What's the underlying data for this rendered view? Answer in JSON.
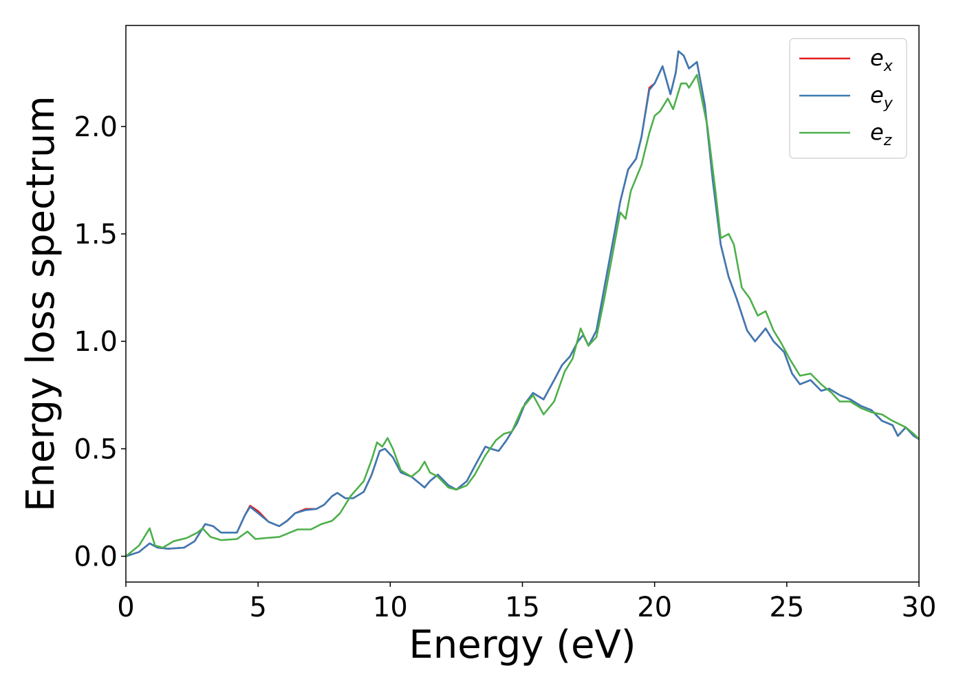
{
  "chart_data": {
    "type": "line",
    "title": "",
    "xlabel": "Energy (eV)",
    "ylabel": "Energy loss spectrum",
    "xlim": [
      0,
      30
    ],
    "ylim": [
      -0.12,
      2.47
    ],
    "xticks": [
      0,
      5,
      10,
      15,
      20,
      25,
      30
    ],
    "xtick_labels": [
      "0",
      "5",
      "10",
      "15",
      "20",
      "25",
      "30"
    ],
    "yticks": [
      0.0,
      0.5,
      1.0,
      1.5,
      2.0
    ],
    "ytick_labels": [
      "0.0",
      "0.5",
      "1.0",
      "1.5",
      "2.0"
    ],
    "grid": false,
    "legend_position": "top-right",
    "series": [
      {
        "name": "e_x",
        "legend_base": "e",
        "legend_sub": "x",
        "color": "#e41a1c",
        "points": [
          [
            0,
            0
          ],
          [
            0.5,
            0.02
          ],
          [
            0.9,
            0.06
          ],
          [
            1.2,
            0.04
          ],
          [
            1.6,
            0.035
          ],
          [
            2.2,
            0.04
          ],
          [
            2.6,
            0.07
          ],
          [
            3.0,
            0.15
          ],
          [
            3.3,
            0.14
          ],
          [
            3.6,
            0.11
          ],
          [
            4.2,
            0.11
          ],
          [
            4.5,
            0.19
          ],
          [
            4.7,
            0.235
          ],
          [
            5.0,
            0.21
          ],
          [
            5.4,
            0.16
          ],
          [
            5.8,
            0.14
          ],
          [
            6.1,
            0.165
          ],
          [
            6.4,
            0.2
          ],
          [
            6.8,
            0.22
          ],
          [
            7.2,
            0.22
          ],
          [
            7.5,
            0.24
          ],
          [
            7.8,
            0.28
          ],
          [
            8.0,
            0.295
          ],
          [
            8.3,
            0.27
          ],
          [
            8.6,
            0.27
          ],
          [
            9.0,
            0.3
          ],
          [
            9.3,
            0.38
          ],
          [
            9.6,
            0.49
          ],
          [
            9.8,
            0.5
          ],
          [
            10.1,
            0.46
          ],
          [
            10.4,
            0.39
          ],
          [
            10.8,
            0.37
          ],
          [
            11.1,
            0.34
          ],
          [
            11.3,
            0.32
          ],
          [
            11.5,
            0.35
          ],
          [
            11.8,
            0.38
          ],
          [
            12.2,
            0.33
          ],
          [
            12.5,
            0.31
          ],
          [
            12.9,
            0.35
          ],
          [
            13.2,
            0.42
          ],
          [
            13.6,
            0.51
          ],
          [
            13.8,
            0.5
          ],
          [
            14.1,
            0.49
          ],
          [
            14.4,
            0.54
          ],
          [
            14.8,
            0.62
          ],
          [
            15.1,
            0.71
          ],
          [
            15.4,
            0.76
          ],
          [
            15.8,
            0.73
          ],
          [
            16.2,
            0.82
          ],
          [
            16.5,
            0.89
          ],
          [
            16.8,
            0.93
          ],
          [
            17.1,
            1.0
          ],
          [
            17.3,
            1.03
          ],
          [
            17.5,
            0.98
          ],
          [
            17.8,
            1.05
          ],
          [
            18.1,
            1.25
          ],
          [
            18.4,
            1.45
          ],
          [
            18.7,
            1.65
          ],
          [
            19.0,
            1.8
          ],
          [
            19.3,
            1.85
          ],
          [
            19.5,
            1.95
          ],
          [
            19.8,
            2.18
          ],
          [
            20.0,
            2.2
          ],
          [
            20.3,
            2.28
          ],
          [
            20.6,
            2.15
          ],
          [
            20.8,
            2.25
          ],
          [
            20.9,
            2.35
          ],
          [
            21.1,
            2.33
          ],
          [
            21.3,
            2.27
          ],
          [
            21.6,
            2.3
          ],
          [
            21.9,
            2.1
          ],
          [
            22.2,
            1.75
          ],
          [
            22.5,
            1.45
          ],
          [
            22.8,
            1.3
          ],
          [
            23.1,
            1.2
          ],
          [
            23.5,
            1.05
          ],
          [
            23.8,
            1.0
          ],
          [
            24.2,
            1.06
          ],
          [
            24.5,
            1.0
          ],
          [
            24.9,
            0.95
          ],
          [
            25.2,
            0.85
          ],
          [
            25.5,
            0.8
          ],
          [
            25.9,
            0.82
          ],
          [
            26.3,
            0.77
          ],
          [
            26.6,
            0.78
          ],
          [
            27.0,
            0.75
          ],
          [
            27.4,
            0.73
          ],
          [
            27.8,
            0.7
          ],
          [
            28.2,
            0.68
          ],
          [
            28.6,
            0.63
          ],
          [
            29.0,
            0.61
          ],
          [
            29.2,
            0.56
          ],
          [
            29.5,
            0.6
          ],
          [
            29.8,
            0.56
          ],
          [
            30.0,
            0.545
          ]
        ]
      },
      {
        "name": "e_y",
        "legend_base": "e",
        "legend_sub": "y",
        "color": "#3a7bb5",
        "points": [
          [
            0,
            0
          ],
          [
            0.5,
            0.02
          ],
          [
            0.9,
            0.06
          ],
          [
            1.2,
            0.04
          ],
          [
            1.6,
            0.035
          ],
          [
            2.2,
            0.04
          ],
          [
            2.6,
            0.07
          ],
          [
            3.0,
            0.15
          ],
          [
            3.3,
            0.14
          ],
          [
            3.6,
            0.11
          ],
          [
            4.2,
            0.11
          ],
          [
            4.5,
            0.19
          ],
          [
            4.7,
            0.23
          ],
          [
            5.0,
            0.2
          ],
          [
            5.4,
            0.16
          ],
          [
            5.8,
            0.14
          ],
          [
            6.1,
            0.165
          ],
          [
            6.4,
            0.2
          ],
          [
            6.8,
            0.215
          ],
          [
            7.2,
            0.22
          ],
          [
            7.5,
            0.24
          ],
          [
            7.8,
            0.28
          ],
          [
            8.0,
            0.295
          ],
          [
            8.3,
            0.27
          ],
          [
            8.6,
            0.27
          ],
          [
            9.0,
            0.3
          ],
          [
            9.3,
            0.38
          ],
          [
            9.6,
            0.49
          ],
          [
            9.8,
            0.5
          ],
          [
            10.1,
            0.46
          ],
          [
            10.4,
            0.39
          ],
          [
            10.8,
            0.37
          ],
          [
            11.1,
            0.34
          ],
          [
            11.3,
            0.32
          ],
          [
            11.5,
            0.35
          ],
          [
            11.8,
            0.38
          ],
          [
            12.2,
            0.33
          ],
          [
            12.5,
            0.31
          ],
          [
            12.9,
            0.35
          ],
          [
            13.2,
            0.42
          ],
          [
            13.6,
            0.51
          ],
          [
            13.8,
            0.5
          ],
          [
            14.1,
            0.49
          ],
          [
            14.4,
            0.54
          ],
          [
            14.8,
            0.62
          ],
          [
            15.1,
            0.71
          ],
          [
            15.4,
            0.76
          ],
          [
            15.8,
            0.73
          ],
          [
            16.2,
            0.82
          ],
          [
            16.5,
            0.89
          ],
          [
            16.8,
            0.93
          ],
          [
            17.1,
            1.0
          ],
          [
            17.3,
            1.03
          ],
          [
            17.5,
            0.98
          ],
          [
            17.8,
            1.05
          ],
          [
            18.1,
            1.25
          ],
          [
            18.4,
            1.45
          ],
          [
            18.7,
            1.65
          ],
          [
            19.0,
            1.8
          ],
          [
            19.3,
            1.85
          ],
          [
            19.5,
            1.95
          ],
          [
            19.8,
            2.17
          ],
          [
            20.0,
            2.2
          ],
          [
            20.3,
            2.28
          ],
          [
            20.6,
            2.15
          ],
          [
            20.8,
            2.25
          ],
          [
            20.9,
            2.35
          ],
          [
            21.1,
            2.33
          ],
          [
            21.3,
            2.27
          ],
          [
            21.6,
            2.3
          ],
          [
            21.9,
            2.1
          ],
          [
            22.2,
            1.75
          ],
          [
            22.5,
            1.45
          ],
          [
            22.8,
            1.3
          ],
          [
            23.1,
            1.2
          ],
          [
            23.5,
            1.05
          ],
          [
            23.8,
            1.0
          ],
          [
            24.2,
            1.06
          ],
          [
            24.5,
            1.0
          ],
          [
            24.9,
            0.95
          ],
          [
            25.2,
            0.85
          ],
          [
            25.5,
            0.8
          ],
          [
            25.9,
            0.82
          ],
          [
            26.3,
            0.77
          ],
          [
            26.6,
            0.78
          ],
          [
            27.0,
            0.75
          ],
          [
            27.4,
            0.73
          ],
          [
            27.8,
            0.7
          ],
          [
            28.2,
            0.68
          ],
          [
            28.6,
            0.63
          ],
          [
            29.0,
            0.61
          ],
          [
            29.2,
            0.56
          ],
          [
            29.5,
            0.6
          ],
          [
            29.8,
            0.56
          ],
          [
            30.0,
            0.545
          ]
        ]
      },
      {
        "name": "e_z",
        "legend_base": "e",
        "legend_sub": "z",
        "color": "#4daf4a",
        "points": [
          [
            0,
            0
          ],
          [
            0.5,
            0.05
          ],
          [
            0.8,
            0.11
          ],
          [
            0.9,
            0.13
          ],
          [
            1.1,
            0.05
          ],
          [
            1.4,
            0.04
          ],
          [
            1.8,
            0.07
          ],
          [
            2.3,
            0.085
          ],
          [
            2.7,
            0.11
          ],
          [
            2.9,
            0.13
          ],
          [
            3.2,
            0.09
          ],
          [
            3.6,
            0.075
          ],
          [
            4.2,
            0.08
          ],
          [
            4.6,
            0.115
          ],
          [
            4.9,
            0.08
          ],
          [
            5.3,
            0.085
          ],
          [
            5.8,
            0.09
          ],
          [
            6.2,
            0.11
          ],
          [
            6.5,
            0.125
          ],
          [
            7.0,
            0.125
          ],
          [
            7.4,
            0.15
          ],
          [
            7.8,
            0.165
          ],
          [
            8.1,
            0.2
          ],
          [
            8.5,
            0.28
          ],
          [
            9.0,
            0.35
          ],
          [
            9.3,
            0.45
          ],
          [
            9.5,
            0.53
          ],
          [
            9.7,
            0.51
          ],
          [
            9.9,
            0.55
          ],
          [
            10.1,
            0.5
          ],
          [
            10.4,
            0.4
          ],
          [
            10.8,
            0.37
          ],
          [
            11.1,
            0.4
          ],
          [
            11.3,
            0.44
          ],
          [
            11.5,
            0.39
          ],
          [
            11.8,
            0.37
          ],
          [
            12.2,
            0.32
          ],
          [
            12.5,
            0.31
          ],
          [
            12.9,
            0.33
          ],
          [
            13.2,
            0.38
          ],
          [
            13.6,
            0.47
          ],
          [
            14.0,
            0.54
          ],
          [
            14.3,
            0.57
          ],
          [
            14.6,
            0.58
          ],
          [
            15.0,
            0.69
          ],
          [
            15.4,
            0.75
          ],
          [
            15.8,
            0.66
          ],
          [
            16.2,
            0.72
          ],
          [
            16.6,
            0.86
          ],
          [
            16.9,
            0.92
          ],
          [
            17.2,
            1.06
          ],
          [
            17.5,
            0.98
          ],
          [
            17.8,
            1.02
          ],
          [
            18.1,
            1.2
          ],
          [
            18.4,
            1.4
          ],
          [
            18.7,
            1.6
          ],
          [
            18.9,
            1.57
          ],
          [
            19.1,
            1.7
          ],
          [
            19.5,
            1.82
          ],
          [
            19.8,
            1.97
          ],
          [
            20.0,
            2.05
          ],
          [
            20.2,
            2.07
          ],
          [
            20.5,
            2.13
          ],
          [
            20.7,
            2.08
          ],
          [
            21.0,
            2.2
          ],
          [
            21.2,
            2.2
          ],
          [
            21.3,
            2.18
          ],
          [
            21.6,
            2.24
          ],
          [
            22.0,
            2.0
          ],
          [
            22.3,
            1.7
          ],
          [
            22.5,
            1.48
          ],
          [
            22.8,
            1.5
          ],
          [
            23.0,
            1.45
          ],
          [
            23.3,
            1.25
          ],
          [
            23.6,
            1.2
          ],
          [
            23.9,
            1.12
          ],
          [
            24.2,
            1.14
          ],
          [
            24.5,
            1.05
          ],
          [
            24.8,
            0.99
          ],
          [
            25.1,
            0.92
          ],
          [
            25.5,
            0.84
          ],
          [
            25.9,
            0.85
          ],
          [
            26.3,
            0.8
          ],
          [
            26.7,
            0.76
          ],
          [
            27.0,
            0.72
          ],
          [
            27.4,
            0.72
          ],
          [
            27.8,
            0.69
          ],
          [
            28.2,
            0.67
          ],
          [
            28.6,
            0.66
          ],
          [
            29.0,
            0.63
          ],
          [
            29.5,
            0.6
          ],
          [
            29.8,
            0.57
          ],
          [
            30.0,
            0.545
          ]
        ]
      }
    ]
  }
}
